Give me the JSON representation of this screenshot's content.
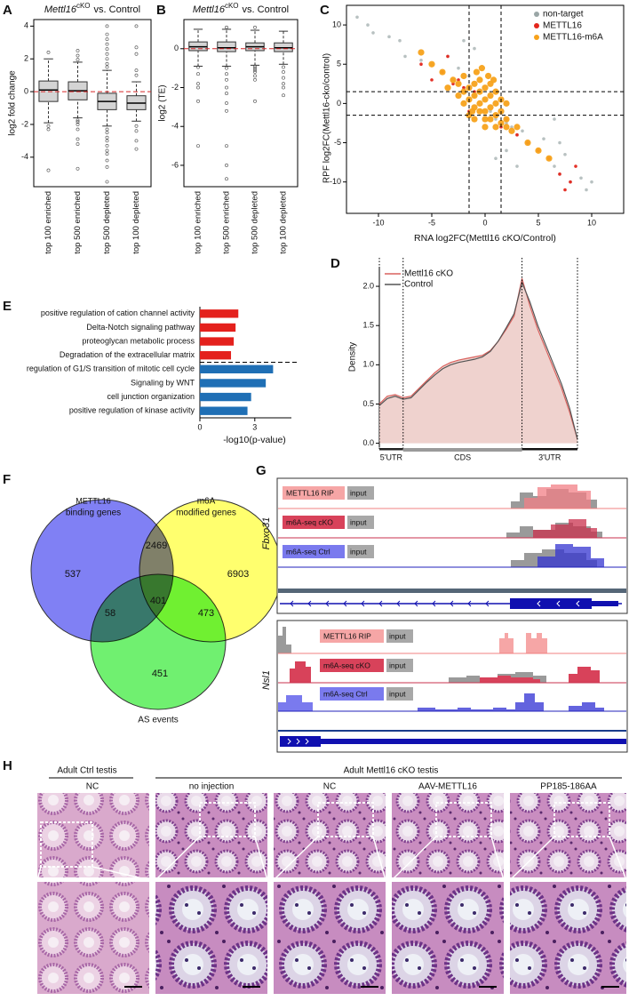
{
  "panel_labels": [
    "A",
    "B",
    "C",
    "D",
    "E",
    "F",
    "G",
    "H"
  ],
  "chart_data": [
    {
      "type": "box",
      "title": {
        "gene": "Mettl16",
        "superscript": "cKO",
        "rest": "vs. Control"
      },
      "y_label": "log2 fold change",
      "categories": [
        "top 100 enriched",
        "top 500 enriched",
        "top 500 depleted",
        "top 100 depleted"
      ],
      "boxes": [
        {
          "low": -1.9,
          "q1": -0.6,
          "median": 0.1,
          "q3": 0.65,
          "high": 2.0,
          "outliers": [
            2.4,
            -2.1,
            -2.3,
            -4.8
          ]
        },
        {
          "low": -1.6,
          "q1": -0.5,
          "median": 0.05,
          "q3": 0.6,
          "high": 1.8,
          "outliers": [
            2.5,
            2.2,
            1.95,
            -1.75,
            -1.85,
            -2.0,
            -2.3,
            -2.9,
            -3.2,
            -4.7
          ]
        },
        {
          "low": -2.1,
          "q1": -1.1,
          "median": -0.6,
          "q3": -0.1,
          "high": 1.3,
          "outliers": [
            4.0,
            3.5,
            3.2,
            2.9,
            2.6,
            2.3,
            2.0,
            1.7,
            1.5,
            -2.3,
            -2.5,
            -2.8,
            -3.0,
            -3.3,
            -3.6,
            -3.8,
            -4.2,
            -4.6,
            -5.5
          ]
        },
        {
          "low": -1.8,
          "q1": -1.1,
          "median": -0.7,
          "q3": -0.25,
          "high": 0.6,
          "outliers": [
            1.0,
            1.3,
            2.3,
            2.7,
            4.0,
            -2.1,
            -2.4,
            -3.0,
            -3.5
          ]
        }
      ],
      "hline": 0,
      "hline_color": "#d62728",
      "ylim": [
        -5.8,
        4.4
      ],
      "yticks": [
        4,
        2,
        0,
        -2,
        -4
      ]
    },
    {
      "type": "box",
      "title": {
        "gene": "Mettl16",
        "superscript": "cKO",
        "rest": "vs. Control"
      },
      "y_label": "log2 (TE)",
      "categories": [
        "top 100 enriched",
        "top 500 enriched",
        "top 500 depleted",
        "top 100 depleted"
      ],
      "boxes": [
        {
          "low": -0.9,
          "q1": -0.1,
          "median": 0.1,
          "q3": 0.35,
          "high": 1.0,
          "outliers": [
            -0.95,
            -1.3,
            -1.8,
            -2.0,
            -2.7,
            -5.0
          ]
        },
        {
          "low": -0.9,
          "q1": -0.15,
          "median": 0.05,
          "q3": 0.35,
          "high": 1.0,
          "outliers": [
            1.1,
            -1.0,
            -1.3,
            -1.6,
            -2.0,
            -2.3,
            -2.8,
            -3.2,
            -5.0,
            -6.0,
            -6.7
          ]
        },
        {
          "low": -0.85,
          "q1": -0.1,
          "median": 0.1,
          "q3": 0.3,
          "high": 0.95,
          "outliers": [
            1.1,
            -0.9,
            -1.0,
            -1.1,
            -1.2,
            -1.4,
            -1.6,
            -2.7
          ]
        },
        {
          "low": -0.8,
          "q1": -0.15,
          "median": 0.05,
          "q3": 0.3,
          "high": 0.9,
          "outliers": [
            -0.95,
            -1.2,
            -1.5,
            -1.8,
            -2.0,
            -2.4
          ]
        }
      ],
      "hline": 0,
      "hline_color": "#d62728",
      "ylim": [
        -7.1,
        1.5
      ],
      "yticks": [
        0,
        -2,
        -4,
        -6
      ]
    },
    {
      "type": "scatter",
      "x_label": "RNA log2FC(Mettl16 cKO/Control)",
      "y_label": "RPF log2FC(Mettl16-cko/control)",
      "series": [
        {
          "name": "non-target",
          "color": "#9aa6a6",
          "x": [
            -12,
            -11,
            -10.5,
            -9,
            -8,
            -7.5,
            -6,
            -5,
            -4,
            -3.5,
            -3,
            -2.5,
            -2,
            -1.5,
            -1,
            0,
            0.5,
            1,
            2,
            2.5,
            3,
            3.5,
            4,
            5,
            5.5,
            6,
            6.5,
            7,
            7.5,
            8,
            9,
            9.5,
            10,
            -2,
            -1,
            1,
            2,
            3,
            6.5,
            7
          ],
          "y": [
            11,
            10,
            9,
            8.5,
            8,
            6,
            5.5,
            5,
            4,
            6,
            3,
            4.5,
            2,
            3.5,
            1,
            0.5,
            -1,
            -2,
            -2.5,
            -3,
            -4,
            -3.5,
            -5,
            -6,
            -4.5,
            -7,
            -8,
            -9,
            -6.5,
            -10,
            -9.5,
            -11,
            -10,
            8,
            7,
            -7,
            -6,
            -8,
            -2,
            -5
          ]
        },
        {
          "name": "METTL16",
          "color": "#e3261c",
          "x": [
            -6,
            -5,
            -4,
            -3,
            -2.5,
            -2,
            -1.5,
            -1,
            1,
            1.5,
            2,
            3,
            4,
            5,
            6,
            7,
            7.5,
            8,
            8.5,
            -3.5
          ],
          "y": [
            5,
            3,
            4,
            2.5,
            3,
            2,
            -1,
            1.5,
            -1.5,
            -3,
            -2,
            -4,
            -5,
            -6,
            -7,
            -9,
            -11,
            -10,
            -8,
            6
          ]
        },
        {
          "name": "METTL16-m6A",
          "color": "#f7a21b",
          "x": [
            -3,
            -2.5,
            -2,
            -2,
            -1.5,
            -1.5,
            -1,
            -1,
            -1,
            -0.5,
            -0.5,
            -0.5,
            0,
            0,
            0,
            0,
            0.5,
            0.5,
            0.5,
            1,
            1,
            1,
            1.5,
            1.5,
            2,
            2,
            2.5,
            3,
            -4,
            -3.5,
            -2.5,
            -1.5,
            -0.5,
            0.5,
            1.5,
            -1,
            0,
            1,
            -2,
            2,
            -5,
            -6,
            4,
            5,
            6,
            -0.8,
            0.3,
            -0.3,
            0.8,
            -1.2
          ],
          "y": [
            3,
            2.5,
            1.5,
            3.5,
            0.5,
            2,
            1,
            2.5,
            -0.5,
            0,
            1.5,
            3,
            0.5,
            2,
            -1,
            -2,
            1,
            -0.5,
            2.5,
            0,
            -1.5,
            1.5,
            -1,
            -2.5,
            -2,
            -3,
            -3.5,
            -3,
            4,
            2,
            1,
            -1.5,
            -1,
            -2,
            0.5,
            -2,
            -3,
            -3,
            0,
            0,
            5,
            6.5,
            -5,
            -6,
            -7,
            4,
            3.5,
            4.5,
            3,
            -1
          ]
        }
      ],
      "vlines": [
        -1.5,
        1.5
      ],
      "hlines": [
        -1.5,
        1.5
      ],
      "xlim": [
        -13,
        13
      ],
      "xticks": [
        -10,
        -5,
        0,
        5,
        10
      ],
      "ylim": [
        -14,
        12.5
      ],
      "yticks": [
        10,
        5,
        0,
        -5,
        -10
      ],
      "legend": "top-right"
    },
    {
      "type": "line",
      "y_label": "Density",
      "series": [
        {
          "name": "Mettl16 cKO",
          "color": "#d9625e",
          "fill": "#eccac6",
          "values": [
            0.5,
            0.6,
            0.62,
            0.58,
            0.6,
            0.7,
            0.8,
            0.9,
            0.98,
            1.03,
            1.06,
            1.08,
            1.1,
            1.12,
            1.18,
            1.3,
            1.45,
            1.62,
            2.1,
            1.75,
            1.45,
            1.2,
            0.95,
            0.7,
            0.4,
            0.05
          ]
        },
        {
          "name": "Control",
          "color": "#555555",
          "values": [
            0.48,
            0.57,
            0.6,
            0.56,
            0.58,
            0.68,
            0.78,
            0.87,
            0.95,
            1.0,
            1.03,
            1.05,
            1.07,
            1.1,
            1.17,
            1.3,
            1.47,
            1.65,
            2.05,
            1.8,
            1.5,
            1.25,
            1.0,
            0.75,
            0.45,
            0.05
          ]
        }
      ],
      "regions": [
        {
          "label": "5'UTR",
          "start": 0,
          "end": 3,
          "color": "#222222"
        },
        {
          "label": "CDS",
          "start": 3,
          "end": 18,
          "color": "#9a9a9a"
        },
        {
          "label": "3'UTR",
          "start": 18,
          "end": 25,
          "color": "#111111"
        }
      ],
      "ylim": [
        -0.05,
        2.25
      ],
      "yticks": [
        {
          "value": 0,
          "label": "0.0"
        },
        0.5,
        {
          "value": 1,
          "label": "1.0"
        },
        1.5,
        {
          "value": 2,
          "label": "2.0"
        }
      ],
      "legend": "top-left"
    },
    {
      "type": "bar",
      "orientation": "horizontal",
      "x_label": "-log10(p-value)",
      "categories": [
        "positive regulation of cation channel activity",
        "Delta-Notch signaling pathway",
        "proteoglycan metabolic process",
        "Degradation of the extracellular matrix",
        "regulation of G1/S transition of mitotic cell cycle",
        "Signaling by WNT",
        "cell junction organization",
        "positive regulation of kinase activity"
      ],
      "values": [
        2.1,
        1.95,
        1.85,
        1.7,
        4.0,
        3.6,
        2.8,
        2.6
      ],
      "colors": [
        "#e4211d",
        "#e4211d",
        "#e4211d",
        "#e4211d",
        "#1f6fb5",
        "#1f6fb5",
        "#1f6fb5",
        "#1f6fb5"
      ],
      "xlim": [
        0,
        5
      ],
      "xticks": [
        0,
        3
      ]
    }
  ],
  "venn": {
    "sets": [
      {
        "label_lines": [
          "METTL16",
          "binding genes"
        ],
        "color": "#8080f4"
      },
      {
        "label_lines": [
          "m6A",
          "modified genes"
        ],
        "color": "#ffff6e"
      },
      {
        "label_lines": [
          "AS events"
        ],
        "color": "#70f070"
      }
    ],
    "counts": [
      537,
      2469,
      6903,
      58,
      401,
      473,
      451
    ]
  },
  "tracks": [
    {
      "gene": "Fbxo31",
      "rows": [
        {
          "label": "METTL16 RIP",
          "input": "input"
        },
        {
          "label": "m6A-seq cKO",
          "input": "input"
        },
        {
          "label": "m6A-seq Ctrl",
          "input": "input"
        }
      ]
    },
    {
      "gene": "Nsl1",
      "rows": [
        {
          "label": "METTL16 RIP",
          "input": "input"
        },
        {
          "label": "m6A-seq cKO",
          "input": "input"
        },
        {
          "label": "m6A-seq Ctrl",
          "input": "input"
        }
      ]
    }
  ],
  "histology": {
    "groups": [
      {
        "label": "Adult Ctrl testis",
        "conditions": [
          "NC"
        ]
      },
      {
        "label": "Adult Mettl16 cKO testis",
        "conditions": [
          "no injection",
          "NC",
          "AAV-METTL16",
          "PP185-186AA"
        ]
      }
    ]
  }
}
